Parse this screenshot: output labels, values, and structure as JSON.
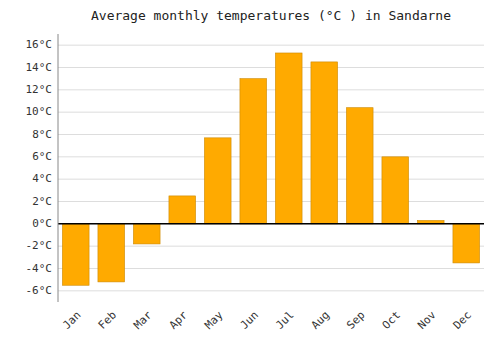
{
  "chart_data": {
    "type": "bar",
    "title": "Average monthly temperatures (°C ) in Sandarne",
    "categories": [
      "Jan",
      "Feb",
      "Mar",
      "Apr",
      "May",
      "Jun",
      "Jul",
      "Aug",
      "Sep",
      "Oct",
      "Nov",
      "Dec"
    ],
    "values": [
      -5.5,
      -5.2,
      -1.8,
      2.5,
      7.7,
      13.0,
      15.3,
      14.5,
      10.4,
      6.0,
      0.3,
      -3.5
    ],
    "color": "#FFAA00",
    "ylim": [
      -7,
      17
    ],
    "yticks": [
      {
        "value": -6,
        "label": "-6°C"
      },
      {
        "value": -4,
        "label": "-4°C"
      },
      {
        "value": -2,
        "label": "-2°C"
      },
      {
        "value": 0,
        "label": "0°C"
      },
      {
        "value": 2,
        "label": "2°C"
      },
      {
        "value": 4,
        "label": "4°C"
      },
      {
        "value": 6,
        "label": "6°C"
      },
      {
        "value": 8,
        "label": "8°C"
      },
      {
        "value": 10,
        "label": "10°C"
      },
      {
        "value": 12,
        "label": "12°C"
      },
      {
        "value": 14,
        "label": "14°C"
      },
      {
        "value": 16,
        "label": "16°C"
      }
    ],
    "grid": true
  }
}
